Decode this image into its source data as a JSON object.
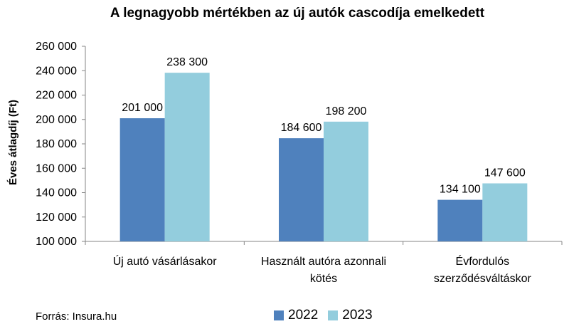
{
  "colors": {
    "series_2022": "#4F81BD",
    "series_2023": "#93CDDD",
    "axis": "#868686"
  },
  "source": "Forrás: Insura.hu",
  "chart_data": {
    "type": "bar",
    "title": "A legnagyobb mértékben az új autók cascodíja emelkedett",
    "ylabel": "Éves átlagdíj (Ft)",
    "xlabel": "",
    "ylim": [
      100000,
      260000
    ],
    "yticks": [
      100000,
      120000,
      140000,
      160000,
      180000,
      200000,
      220000,
      240000,
      260000
    ],
    "ytick_labels": [
      "100 000",
      "120 000",
      "140 000",
      "160 000",
      "180 000",
      "200 000",
      "220 000",
      "240 000",
      "260 000"
    ],
    "categories": [
      [
        "Új autó vásárlásakor"
      ],
      [
        "Használt autóra azonnali",
        "kötés"
      ],
      [
        "Évfordulós",
        "szerződésváltáskor"
      ]
    ],
    "series": [
      {
        "name": "2022",
        "values": [
          201000,
          184600,
          134100
        ],
        "labels": [
          "201 000",
          "184 600",
          "134 100"
        ]
      },
      {
        "name": "2023",
        "values": [
          238300,
          198200,
          147600
        ],
        "labels": [
          "238 300",
          "198 200",
          "147 600"
        ]
      }
    ],
    "grid": false,
    "legend_position": "bottom"
  }
}
